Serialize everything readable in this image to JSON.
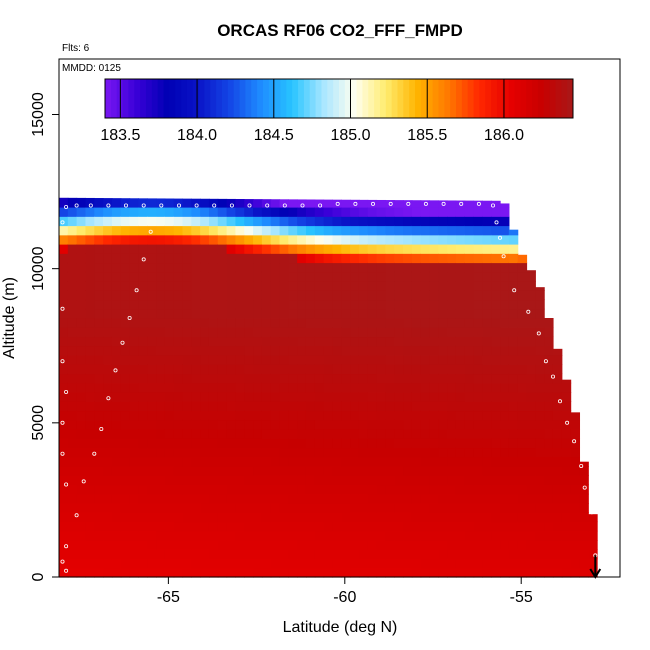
{
  "chart_data": {
    "type": "heatmap",
    "title": "ORCAS RF06 CO2_FFF_FMPD",
    "flights_label": "Flts: 6",
    "date_label": "MMDD: 0125",
    "xlabel": "Latitude (deg N)",
    "ylabel": "Altitude (m)",
    "xlim": [
      -68.1,
      -52.2
    ],
    "ylim": [
      0,
      16800
    ],
    "xticks": [
      -65,
      -60,
      -55
    ],
    "xtick_labels": [
      "-65",
      "-60",
      "-55"
    ],
    "yticks": [
      0,
      5000,
      10000,
      15000
    ],
    "ytick_labels": [
      "0",
      "5000",
      "10000",
      "15000"
    ],
    "colorbar": {
      "range": [
        183.4,
        186.45
      ],
      "ticks": [
        183.5,
        184.0,
        184.5,
        185.0,
        185.5,
        186.0
      ],
      "tick_labels": [
        "183.5",
        "184.0",
        "184.5",
        "185.0",
        "185.5",
        "186.0"
      ],
      "colors": [
        "#7a17f2",
        "#3a00d8",
        "#0000b4",
        "#0a14c8",
        "#1446e6",
        "#1e8cff",
        "#28c4ff",
        "#a8e6ff",
        "#fffff0",
        "#ffec6e",
        "#ffb400",
        "#ff7800",
        "#ff2800",
        "#e60000",
        "#c80000",
        "#a81818"
      ]
    },
    "grid": false,
    "max_altitude_profile": [
      {
        "lat": -68.1,
        "alt": 12300
      },
      {
        "lat": -55.5,
        "alt": 12200
      },
      {
        "lat": -55.0,
        "alt": 10500
      },
      {
        "lat": -54.5,
        "alt": 9500
      },
      {
        "lat": -54.0,
        "alt": 7500
      },
      {
        "lat": -53.5,
        "alt": 5500
      },
      {
        "lat": -53.0,
        "alt": 2300
      },
      {
        "lat": -52.8,
        "alt": 200
      }
    ],
    "series": [
      {
        "values": [
          {
            "x": -67.9,
            "y": 12000
          },
          {
            "x": -67.6,
            "y": 12050
          },
          {
            "x": -67.2,
            "y": 12050
          },
          {
            "x": -66.7,
            "y": 12050
          },
          {
            "x": -66.2,
            "y": 12050
          },
          {
            "x": -65.7,
            "y": 12050
          },
          {
            "x": -65.2,
            "y": 12050
          },
          {
            "x": -64.7,
            "y": 12050
          },
          {
            "x": -64.2,
            "y": 12050
          },
          {
            "x": -63.7,
            "y": 12050
          },
          {
            "x": -63.2,
            "y": 12050
          },
          {
            "x": -62.7,
            "y": 12050
          },
          {
            "x": -62.2,
            "y": 12050
          },
          {
            "x": -61.7,
            "y": 12050
          },
          {
            "x": -61.2,
            "y": 12050
          },
          {
            "x": -60.7,
            "y": 12050
          },
          {
            "x": -60.2,
            "y": 12100
          },
          {
            "x": -59.7,
            "y": 12100
          },
          {
            "x": -59.2,
            "y": 12100
          },
          {
            "x": -58.7,
            "y": 12100
          },
          {
            "x": -58.2,
            "y": 12100
          },
          {
            "x": -57.7,
            "y": 12100
          },
          {
            "x": -57.2,
            "y": 12100
          },
          {
            "x": -56.7,
            "y": 12100
          },
          {
            "x": -56.2,
            "y": 12100
          },
          {
            "x": -55.8,
            "y": 12050
          },
          {
            "x": -55.7,
            "y": 11500
          },
          {
            "x": -55.6,
            "y": 11000
          },
          {
            "x": -55.5,
            "y": 10400
          },
          {
            "x": -55.2,
            "y": 9300
          },
          {
            "x": -54.8,
            "y": 8600
          },
          {
            "x": -54.5,
            "y": 7900
          },
          {
            "x": -54.3,
            "y": 7000
          },
          {
            "x": -54.1,
            "y": 6500
          },
          {
            "x": -53.9,
            "y": 5700
          },
          {
            "x": -53.7,
            "y": 5000
          },
          {
            "x": -53.5,
            "y": 4400
          },
          {
            "x": -53.3,
            "y": 3600
          },
          {
            "x": -53.2,
            "y": 2900
          },
          {
            "x": -53.0,
            "y": 2100
          },
          {
            "x": -52.9,
            "y": 700
          },
          {
            "x": -65.5,
            "y": 11200
          },
          {
            "x": -65.7,
            "y": 10300
          },
          {
            "x": -65.9,
            "y": 9300
          },
          {
            "x": -66.1,
            "y": 8400
          },
          {
            "x": -66.3,
            "y": 7600
          },
          {
            "x": -66.5,
            "y": 6700
          },
          {
            "x": -66.7,
            "y": 5800
          },
          {
            "x": -66.9,
            "y": 4800
          },
          {
            "x": -67.1,
            "y": 4000
          },
          {
            "x": -67.4,
            "y": 3100
          },
          {
            "x": -67.6,
            "y": 2000
          },
          {
            "x": -67.9,
            "y": 1000
          },
          {
            "x": -67.9,
            "y": 6000
          },
          {
            "x": -68.0,
            "y": 7000
          },
          {
            "x": -68.0,
            "y": 8700
          },
          {
            "x": -68.0,
            "y": 5000
          },
          {
            "x": -68.0,
            "y": 4000
          },
          {
            "x": -67.9,
            "y": 3000
          },
          {
            "x": -68.0,
            "y": 500
          },
          {
            "x": -67.9,
            "y": 200
          },
          {
            "x": -68.0,
            "y": 11500
          }
        ]
      }
    ],
    "annotation_arrow": {
      "lat": -52.9,
      "alt_from": 700,
      "alt_to": 0
    }
  }
}
